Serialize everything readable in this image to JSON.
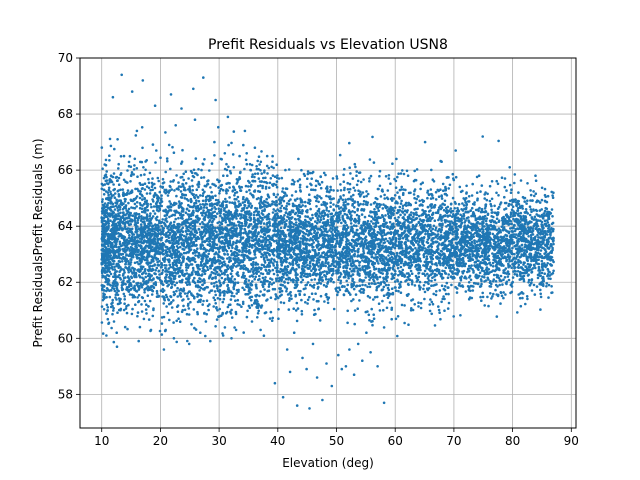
{
  "chart_data": {
    "type": "scatter",
    "title": "Prefit Residuals vs Elevation USN8",
    "xlabel": "Elevation (deg)",
    "ylabel": "Prefit ResidualsPrefit Residuals (m)",
    "xlim": [
      6.3,
      90.8
    ],
    "ylim": [
      56.8,
      70.0
    ],
    "x_ticks": [
      10,
      20,
      30,
      40,
      50,
      60,
      70,
      80,
      90
    ],
    "y_ticks": [
      58,
      60,
      62,
      64,
      66,
      68,
      70
    ],
    "grid": true,
    "marker_color": "#1f77b4",
    "series": [
      {
        "x": [
          10.4,
          11.2,
          11.8,
          12.5,
          13.1,
          13.9,
          14.6,
          15.3,
          16.1,
          16.8,
          17.5,
          18.2,
          19.0,
          19.7,
          20.4,
          21.1,
          21.9,
          22.6,
          23.3,
          24.0,
          24.8,
          25.5,
          26.2,
          27.0,
          27.7,
          28.4,
          29.1,
          29.9,
          30.6,
          31.3,
          32.0,
          32.8,
          33.5,
          34.2,
          35.0,
          35.7,
          36.4,
          37.1,
          37.9,
          38.6,
          39.3,
          40.0,
          40.8,
          41.5,
          42.2,
          43.0,
          43.7,
          44.4,
          45.1,
          45.9,
          46.6,
          47.3,
          48.0,
          48.8,
          49.5,
          50.2,
          51.0,
          51.7,
          52.4,
          53.1,
          53.9,
          54.6,
          55.3,
          56.0,
          56.8,
          57.5,
          58.2,
          59.0,
          59.7,
          60.4,
          61.1,
          61.9,
          62.6,
          63.3,
          64.0,
          64.8,
          65.5,
          66.2,
          67.0,
          67.7,
          68.4,
          69.1,
          69.9,
          70.6,
          71.3,
          72.0,
          72.8,
          73.5,
          74.2,
          75.0,
          75.7,
          76.4,
          77.1,
          77.9,
          78.6,
          79.3,
          80.0,
          80.8,
          81.5,
          82.2,
          83.0,
          83.7,
          84.4,
          85.1,
          85.9,
          86.6
        ],
        "y": [
          63.5,
          64.1,
          62.8,
          63.9,
          64.6,
          63.2,
          62.5,
          64.9,
          63.7,
          62.9,
          64.3,
          63.1,
          65.1,
          62.6,
          63.8,
          64.4,
          63.0,
          62.7,
          64.8,
          63.4,
          62.2,
          64.0,
          65.3,
          63.6,
          62.4,
          64.2,
          63.3,
          62.9,
          64.7,
          63.5,
          62.3,
          64.5,
          63.1,
          62.8,
          64.9,
          63.7,
          62.5,
          64.1,
          63.4,
          62.6,
          64.3,
          63.0,
          62.7,
          64.6,
          63.2,
          62.4,
          64.0,
          63.6,
          62.9,
          64.4,
          63.3,
          62.5,
          64.8,
          63.1,
          62.7,
          64.2,
          63.5,
          62.8,
          64.5,
          63.0,
          62.6,
          64.1,
          63.4,
          62.9,
          64.7,
          63.2,
          62.5,
          64.3,
          63.6,
          62.7,
          64.0,
          63.3,
          62.8,
          64.6,
          63.1,
          62.6,
          64.2,
          63.5,
          62.9,
          64.4,
          63.0,
          62.7,
          64.1,
          63.4,
          62.8,
          64.5,
          63.2,
          62.6,
          64.3,
          63.6,
          62.9,
          64.0,
          63.3,
          62.7,
          64.6,
          63.1,
          62.8,
          64.2,
          63.5,
          63.0,
          64.4,
          63.2,
          63.6,
          63.9,
          63.4,
          63.1
        ]
      },
      {
        "x": [
          10.5,
          11.0,
          11.6,
          12.1,
          12.7,
          13.2,
          13.8,
          14.3,
          14.9,
          15.4,
          16.0,
          16.5,
          17.1,
          17.6,
          18.2,
          18.7,
          19.3,
          19.8,
          20.4,
          20.9,
          21.5,
          22.0,
          22.6,
          23.1,
          23.7,
          24.2,
          24.8,
          25.3,
          25.9,
          26.4,
          27.0,
          27.5,
          28.1,
          28.6,
          29.2,
          29.7,
          30.3,
          30.8,
          31.4,
          31.9,
          32.5,
          33.0,
          33.6,
          34.1,
          34.7,
          35.2,
          35.8,
          36.3,
          36.9,
          37.4,
          38.0,
          38.5,
          39.1,
          39.6,
          40.2,
          40.7,
          41.3,
          41.8,
          42.4,
          42.9,
          43.5,
          44.0,
          44.6,
          45.1,
          45.7,
          46.2,
          46.8,
          47.3,
          47.9,
          48.4,
          49.0,
          49.5,
          50.1,
          50.6,
          51.2,
          51.7,
          52.3,
          52.8,
          53.4,
          53.9,
          54.5,
          55.0,
          55.6,
          56.1,
          56.7,
          57.2,
          57.8,
          58.3,
          58.9,
          59.4,
          60.0,
          60.5,
          61.1,
          61.6,
          62.2,
          62.7,
          63.3,
          63.8,
          64.4,
          64.9,
          65.5,
          66.0,
          66.6,
          67.1,
          67.7,
          68.2,
          68.8,
          69.3,
          69.9,
          70.4,
          71.0,
          71.5,
          72.1,
          72.6,
          73.2,
          73.7,
          74.3,
          74.8,
          75.4,
          75.9,
          76.5,
          77.0,
          77.6,
          78.1,
          78.7,
          79.2,
          79.8,
          80.3,
          80.9,
          81.4,
          82.0,
          82.5,
          83.1,
          83.6,
          84.2,
          84.7,
          85.3,
          85.8
        ],
        "y": [
          66.2,
          61.0,
          65.8,
          60.6,
          67.1,
          61.4,
          66.5,
          60.9,
          65.6,
          61.8,
          67.4,
          60.4,
          66.1,
          61.2,
          65.9,
          60.8,
          66.7,
          61.5,
          65.4,
          60.3,
          66.9,
          61.1,
          67.6,
          60.7,
          66.3,
          61.6,
          65.7,
          60.5,
          67.8,
          61.3,
          66.0,
          60.9,
          65.5,
          61.7,
          67.0,
          61.0,
          66.4,
          61.4,
          65.8,
          61.2,
          66.1,
          61.6,
          65.9,
          61.3,
          66.6,
          61.8,
          65.6,
          61.5,
          66.2,
          61.9,
          65.4,
          61.7,
          66.3,
          61.4,
          65.7,
          61.9,
          66.0,
          62.1,
          65.5,
          61.8,
          66.4,
          62.0,
          65.8,
          62.2,
          65.3,
          61.9,
          65.6,
          62.1,
          65.9,
          62.3,
          65.4,
          62.0,
          65.7,
          62.2,
          65.1,
          62.4,
          65.5,
          62.1,
          65.8,
          62.3,
          65.2,
          62.5,
          65.6,
          62.2,
          65.0,
          62.4,
          65.3,
          62.6,
          65.7,
          62.3,
          65.1,
          62.5,
          65.4,
          62.2,
          65.8,
          62.4,
          65.0,
          62.6,
          65.5,
          62.3,
          65.2,
          62.5,
          65.6,
          62.4,
          65.3,
          62.6,
          65.1,
          62.5,
          65.7,
          62.3,
          65.4,
          62.6,
          65.0,
          62.4,
          65.5,
          62.2,
          65.8,
          62.5,
          65.2,
          62.3,
          65.6,
          62.4,
          65.1,
          62.6,
          65.7,
          62.2,
          65.3,
          62.5,
          64.9,
          62.7,
          65.0,
          62.4,
          64.6,
          62.8,
          64.2,
          62.9,
          63.8,
          62.6
        ]
      },
      {
        "x": [
          10.8,
          11.9,
          12.6,
          13.4,
          14.0,
          15.2,
          16.3,
          17.0,
          18.4,
          19.1,
          20.6,
          21.8,
          22.3,
          23.6,
          24.9,
          25.6,
          26.8,
          27.3,
          28.5,
          29.4,
          30.7,
          31.5,
          32.9,
          34.4,
          35.6,
          36.1,
          37.8,
          38.2,
          39.5,
          40.1,
          40.9,
          41.6,
          42.1,
          42.8,
          43.3,
          44.2,
          44.9,
          45.4,
          46.0,
          46.7,
          47.6,
          48.3,
          49.2,
          50.3,
          50.9,
          51.6,
          52.2,
          53.0,
          53.7,
          54.4,
          55.1,
          55.8,
          56.4,
          57.0,
          58.1,
          60.2,
          62.7,
          65.1,
          67.9,
          70.3,
          72.6,
          74.9,
          77.2,
          79.5,
          81.8,
          83.9
        ],
        "y": [
          60.1,
          68.6,
          59.7,
          69.4,
          60.4,
          68.8,
          59.9,
          69.2,
          60.3,
          68.3,
          59.6,
          68.7,
          60.0,
          68.2,
          59.8,
          68.9,
          60.2,
          69.3,
          59.9,
          68.5,
          60.1,
          67.9,
          60.3,
          67.4,
          60.6,
          66.8,
          60.9,
          66.5,
          58.4,
          60.7,
          57.9,
          59.6,
          58.8,
          60.2,
          57.6,
          59.3,
          58.9,
          57.5,
          59.8,
          58.6,
          57.8,
          59.1,
          58.3,
          59.4,
          58.9,
          59.0,
          59.6,
          58.7,
          59.8,
          59.2,
          60.2,
          59.5,
          60.7,
          59.0,
          57.7,
          66.4,
          61.0,
          67.0,
          66.3,
          66.7,
          61.8,
          67.2,
          61.9,
          66.1,
          61.6,
          65.8
        ]
      },
      {
        "x": [
          11.4,
          12.2,
          13.0,
          13.7,
          14.5,
          15.1,
          15.8,
          16.6,
          17.3,
          18.0,
          18.8,
          19.5,
          20.2,
          21.0,
          21.7,
          22.4,
          23.2,
          23.9,
          24.6,
          25.4,
          26.1,
          26.9,
          27.6,
          28.3,
          29.0,
          29.8,
          30.5,
          31.2,
          32.0,
          32.7,
          33.4,
          34.2,
          34.9,
          35.6,
          36.4,
          37.1,
          37.8,
          38.6,
          39.3,
          40.0,
          40.7,
          41.5,
          42.2,
          42.9,
          43.7,
          44.4,
          45.1,
          45.9,
          46.6,
          47.3,
          48.1,
          48.8,
          49.5,
          50.3,
          51.0,
          51.7,
          52.5,
          53.2,
          53.9,
          54.7,
          55.4,
          56.1,
          56.9,
          57.6,
          58.3,
          59.1,
          59.8,
          60.5,
          61.3,
          62.0,
          62.7,
          63.5,
          64.2,
          64.9,
          65.7,
          66.4,
          67.1,
          67.9,
          68.6,
          69.3,
          70.1,
          70.8,
          71.5,
          72.3,
          73.0,
          73.7,
          74.5,
          75.2,
          75.9,
          76.7,
          77.4,
          78.1,
          78.9,
          79.6,
          80.3,
          81.1,
          81.8,
          82.5,
          83.3,
          84.0,
          84.7,
          85.5,
          86.2
        ],
        "y": [
          64.6,
          62.3,
          63.1,
          65.2,
          62.0,
          64.2,
          63.6,
          62.4,
          65.0,
          63.3,
          62.1,
          64.7,
          63.8,
          62.6,
          65.4,
          63.0,
          62.2,
          64.4,
          63.5,
          62.8,
          65.1,
          63.2,
          62.3,
          64.9,
          63.7,
          62.5,
          64.3,
          63.4,
          62.0,
          64.8,
          63.1,
          62.6,
          64.5,
          63.6,
          62.3,
          64.1,
          63.3,
          62.7,
          64.6,
          63.0,
          62.4,
          64.2,
          63.5,
          62.8,
          64.7,
          63.2,
          62.5,
          64.0,
          63.6,
          62.9,
          64.4,
          63.1,
          62.6,
          64.3,
          63.7,
          62.8,
          64.1,
          63.4,
          62.7,
          64.6,
          63.2,
          62.9,
          64.2,
          63.5,
          62.6,
          64.5,
          63.0,
          62.8,
          64.3,
          63.6,
          62.7,
          64.0,
          63.3,
          62.9,
          64.4,
          63.1,
          62.6,
          64.2,
          63.5,
          62.8,
          64.1,
          63.4,
          62.7,
          64.5,
          63.2,
          62.9,
          64.3,
          63.6,
          62.8,
          64.0,
          63.3,
          62.6,
          64.4,
          63.1,
          63.0,
          64.2,
          63.5,
          63.2,
          63.8,
          63.4,
          63.0,
          63.6,
          63.2
        ]
      }
    ]
  }
}
